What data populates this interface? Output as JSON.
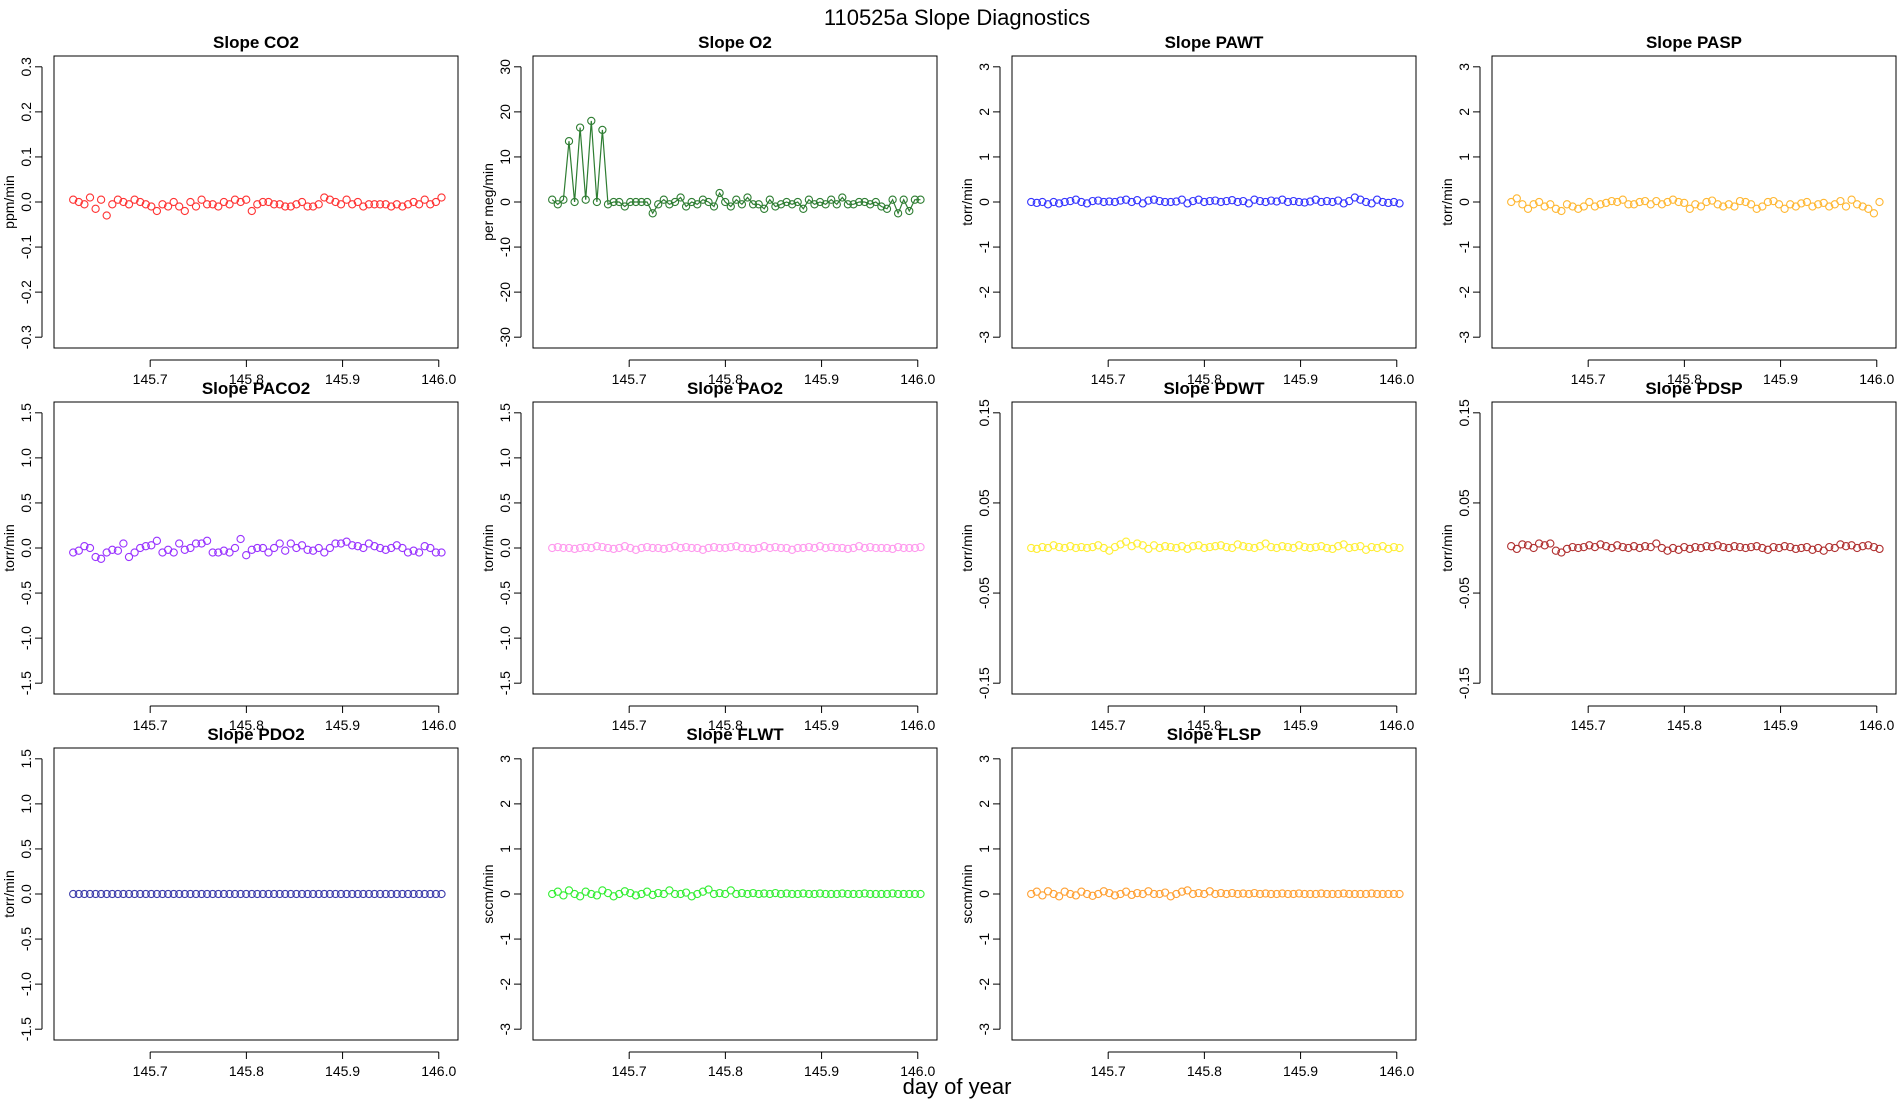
{
  "figure": {
    "title": "110525a   Slope Diagnostics",
    "xlabel": "day of year"
  },
  "chart_data": [
    {
      "type": "scatter",
      "title": "Slope CO2",
      "ylabel": "ppm/min",
      "color": "#ff3333",
      "ylim": [
        -0.3,
        0.3
      ],
      "yticks": [
        -0.3,
        -0.2,
        -0.1,
        0.0,
        0.1,
        0.2,
        0.3
      ],
      "ytick_labels": [
        "-0.3",
        "-0.2",
        "-0.1",
        "0.0",
        "0.1",
        "0.2",
        "0.3"
      ],
      "xlim": [
        145.6,
        146.02
      ],
      "xticks": [
        145.7,
        145.8,
        145.9,
        146.0
      ],
      "xtick_labels": [
        "145.7",
        "145.8",
        "145.9",
        "146.0"
      ],
      "x_start": 145.62,
      "x_step": 0.0058,
      "values": [
        0.005,
        0.0,
        -0.005,
        0.01,
        -0.015,
        0.005,
        -0.03,
        -0.005,
        0.005,
        0.0,
        -0.005,
        0.005,
        0.0,
        -0.005,
        -0.01,
        -0.02,
        -0.005,
        -0.01,
        0.0,
        -0.01,
        -0.02,
        0.0,
        -0.01,
        0.005,
        -0.005,
        -0.005,
        -0.01,
        0.0,
        -0.005,
        0.005,
        0.0,
        0.005,
        -0.02,
        -0.005,
        0.0,
        0.0,
        -0.005,
        -0.005,
        -0.01,
        -0.01,
        -0.005,
        0.0,
        -0.01,
        -0.01,
        -0.005,
        0.01,
        0.005,
        0.0,
        -0.005,
        0.005,
        -0.005,
        0.0,
        -0.01,
        -0.005,
        -0.005,
        -0.005,
        -0.005,
        -0.01,
        -0.005,
        -0.01,
        -0.005,
        0.0,
        -0.005,
        0.005,
        -0.005,
        0.0,
        0.01
      ]
    },
    {
      "type": "line",
      "title": "Slope O2",
      "ylabel": "per meg/min",
      "color": "#2e7d32",
      "ylim": [
        -30,
        30
      ],
      "yticks": [
        -30,
        -20,
        -10,
        0,
        10,
        20,
        30
      ],
      "ytick_labels": [
        "-30",
        "-20",
        "-10",
        "0",
        "10",
        "20",
        "30"
      ],
      "xlim": [
        145.6,
        146.02
      ],
      "xticks": [
        145.7,
        145.8,
        145.9,
        146.0
      ],
      "xtick_labels": [
        "145.7",
        "145.8",
        "145.9",
        "146.0"
      ],
      "x_start": 145.62,
      "x_step": 0.0058,
      "values": [
        0.5,
        -0.5,
        0.5,
        13.5,
        0.0,
        16.5,
        0.5,
        18.0,
        0.0,
        16.0,
        -0.5,
        0.0,
        0.0,
        -1.0,
        0.0,
        0.0,
        0.0,
        0.0,
        -2.5,
        -0.5,
        0.5,
        -0.5,
        0.0,
        1.0,
        -1.0,
        0.0,
        -0.5,
        0.5,
        0.0,
        -1.0,
        2.0,
        0.0,
        -1.0,
        0.5,
        -0.5,
        1.0,
        -0.5,
        -0.5,
        -1.5,
        0.5,
        -1.0,
        -0.5,
        0.0,
        -0.5,
        0.0,
        -1.5,
        0.5,
        -0.5,
        0.0,
        -0.5,
        0.5,
        -0.5,
        1.0,
        -0.5,
        -0.5,
        0.0,
        0.0,
        -0.5,
        0.0,
        -1.0,
        -1.5,
        0.5,
        -2.5,
        0.5,
        -2.0,
        0.5,
        0.5
      ]
    },
    {
      "type": "scatter",
      "title": "Slope PAWT",
      "ylabel": "torr/min",
      "color": "#3333ff",
      "ylim": [
        -3,
        3
      ],
      "yticks": [
        -3,
        -2,
        -1,
        0,
        1,
        2,
        3
      ],
      "ytick_labels": [
        "-3",
        "-2",
        "-1",
        "0",
        "1",
        "2",
        "3"
      ],
      "xlim": [
        145.6,
        146.02
      ],
      "xticks": [
        145.7,
        145.8,
        145.9,
        146.0
      ],
      "xtick_labels": [
        "145.7",
        "145.8",
        "145.9",
        "146.0"
      ],
      "x_start": 145.62,
      "x_step": 0.0058,
      "values": [
        0.0,
        -0.02,
        0.0,
        -0.05,
        0.0,
        -0.03,
        0.0,
        0.02,
        0.05,
        0.0,
        -0.03,
        0.02,
        0.03,
        0.0,
        0.01,
        0.0,
        0.03,
        0.05,
        0.0,
        0.04,
        -0.03,
        0.03,
        0.05,
        0.02,
        0.0,
        0.0,
        0.01,
        0.05,
        -0.03,
        0.02,
        0.05,
        0.0,
        0.02,
        0.03,
        0.0,
        0.02,
        0.04,
        0.0,
        0.02,
        -0.03,
        0.05,
        0.02,
        0.0,
        0.03,
        0.01,
        0.05,
        0.0,
        0.02,
        0.0,
        -0.01,
        0.01,
        0.05,
        0.0,
        0.02,
        0.0,
        0.03,
        -0.03,
        0.02,
        0.1,
        0.05,
        0.0,
        -0.03,
        0.05,
        0.0,
        -0.02,
        0.0,
        -0.03
      ]
    },
    {
      "type": "scatter",
      "title": "Slope PASP",
      "ylabel": "torr/min",
      "color": "#ffb732",
      "ylim": [
        -3,
        3
      ],
      "yticks": [
        -3,
        -2,
        -1,
        0,
        1,
        2,
        3
      ],
      "ytick_labels": [
        "-3",
        "-2",
        "-1",
        "0",
        "1",
        "2",
        "3"
      ],
      "xlim": [
        145.6,
        146.02
      ],
      "xticks": [
        145.7,
        145.8,
        145.9,
        146.0
      ],
      "xtick_labels": [
        "145.7",
        "145.8",
        "145.9",
        "146.0"
      ],
      "x_start": 145.62,
      "x_step": 0.0058,
      "values": [
        0.0,
        0.08,
        -0.05,
        -0.15,
        -0.05,
        0.0,
        -0.1,
        -0.05,
        -0.15,
        -0.2,
        -0.05,
        -0.1,
        -0.15,
        -0.1,
        0.0,
        -0.1,
        -0.05,
        -0.02,
        0.02,
        0.0,
        0.05,
        -0.05,
        -0.05,
        0.0,
        0.02,
        -0.05,
        0.02,
        -0.05,
        0.0,
        0.05,
        0.0,
        -0.02,
        -0.15,
        -0.05,
        -0.1,
        0.0,
        0.03,
        -0.05,
        -0.1,
        -0.05,
        -0.1,
        0.02,
        0.0,
        -0.05,
        -0.15,
        -0.1,
        0.0,
        0.02,
        -0.05,
        -0.15,
        -0.05,
        -0.1,
        -0.03,
        0.0,
        -0.1,
        -0.05,
        -0.02,
        -0.1,
        -0.05,
        0.02,
        -0.1,
        0.05,
        -0.05,
        -0.1,
        -0.15,
        -0.25,
        0.0
      ]
    },
    {
      "type": "scatter",
      "title": "Slope PACO2",
      "ylabel": "torr/min",
      "color": "#9933ff",
      "ylim": [
        -1.5,
        1.5
      ],
      "yticks": [
        -1.5,
        -1.0,
        -0.5,
        0.0,
        0.5,
        1.0,
        1.5
      ],
      "ytick_labels": [
        "-1.5",
        "-1.0",
        "-0.5",
        "0.0",
        "0.5",
        "1.0",
        "1.5"
      ],
      "xlim": [
        145.6,
        146.02
      ],
      "xticks": [
        145.7,
        145.8,
        145.9,
        146.0
      ],
      "xtick_labels": [
        "145.7",
        "145.8",
        "145.9",
        "146.0"
      ],
      "x_start": 145.62,
      "x_step": 0.0058,
      "values": [
        -0.05,
        -0.03,
        0.02,
        0.0,
        -0.1,
        -0.12,
        -0.05,
        -0.02,
        -0.03,
        0.05,
        -0.1,
        -0.05,
        0.0,
        0.02,
        0.03,
        0.08,
        -0.05,
        -0.02,
        -0.05,
        0.05,
        -0.02,
        0.0,
        0.05,
        0.05,
        0.08,
        -0.05,
        -0.05,
        -0.03,
        -0.05,
        0.0,
        0.1,
        -0.08,
        -0.02,
        0.0,
        0.0,
        -0.05,
        0.0,
        0.05,
        -0.03,
        0.05,
        0.0,
        0.03,
        -0.02,
        -0.03,
        0.0,
        -0.05,
        0.0,
        0.05,
        0.05,
        0.07,
        0.03,
        0.02,
        0.0,
        0.05,
        0.02,
        0.0,
        -0.02,
        0.0,
        0.03,
        0.0,
        -0.05,
        -0.03,
        -0.05,
        0.02,
        0.0,
        -0.05,
        -0.05
      ]
    },
    {
      "type": "scatter",
      "title": "Slope PAO2",
      "ylabel": "torr/min",
      "color": "#ff99ee",
      "ylim": [
        -1.5,
        1.5
      ],
      "yticks": [
        -1.5,
        -1.0,
        -0.5,
        0.0,
        0.5,
        1.0,
        1.5
      ],
      "ytick_labels": [
        "-1.5",
        "-1.0",
        "-0.5",
        "0.0",
        "0.5",
        "1.0",
        "1.5"
      ],
      "xlim": [
        145.6,
        146.02
      ],
      "xticks": [
        145.7,
        145.8,
        145.9,
        146.0
      ],
      "xtick_labels": [
        "145.7",
        "145.8",
        "145.9",
        "146.0"
      ],
      "x_start": 145.62,
      "x_step": 0.0058,
      "values": [
        0.0,
        0.01,
        0.0,
        0.0,
        -0.01,
        0.0,
        0.01,
        0.0,
        0.02,
        0.01,
        0.0,
        -0.01,
        0.0,
        0.02,
        0.0,
        -0.02,
        0.0,
        0.01,
        0.0,
        0.0,
        -0.01,
        0.0,
        0.02,
        0.0,
        0.01,
        0.0,
        0.0,
        -0.02,
        0.0,
        0.01,
        0.0,
        0.0,
        0.01,
        0.02,
        0.0,
        0.0,
        -0.01,
        0.0,
        0.02,
        0.0,
        0.01,
        0.0,
        0.0,
        -0.02,
        0.0,
        0.0,
        0.01,
        0.0,
        0.02,
        0.0,
        0.01,
        0.0,
        0.0,
        -0.01,
        0.0,
        0.02,
        0.0,
        0.01,
        0.0,
        0.0,
        0.0,
        -0.01,
        0.01,
        0.0,
        0.0,
        0.0,
        0.01
      ]
    },
    {
      "type": "scatter",
      "title": "Slope PDWT",
      "ylabel": "torr/min",
      "color": "#ffee33",
      "ylim": [
        -0.15,
        0.15
      ],
      "yticks": [
        -0.15,
        -0.05,
        0.05,
        0.15
      ],
      "ytick_labels": [
        "-0.15",
        "-0.05",
        "0.05",
        "0.15"
      ],
      "xlim": [
        145.6,
        146.02
      ],
      "xticks": [
        145.7,
        145.8,
        145.9,
        146.0
      ],
      "xtick_labels": [
        "145.7",
        "145.8",
        "145.9",
        "146.0"
      ],
      "x_start": 145.62,
      "x_step": 0.0058,
      "values": [
        0.0,
        -0.001,
        0.001,
        0.0,
        0.003,
        0.001,
        0.0,
        0.002,
        0.0,
        0.001,
        0.0,
        0.001,
        0.003,
        0.0,
        -0.003,
        0.001,
        0.004,
        0.007,
        0.002,
        0.005,
        0.003,
        -0.001,
        0.003,
        0.0,
        0.002,
        0.001,
        0.0,
        0.002,
        -0.001,
        0.002,
        0.003,
        0.0,
        0.001,
        0.002,
        0.003,
        0.001,
        0.0,
        0.004,
        0.002,
        0.001,
        0.0,
        0.002,
        0.005,
        0.001,
        0.0,
        0.002,
        0.001,
        0.0,
        0.003,
        0.001,
        0.0,
        0.001,
        0.002,
        0.0,
        -0.001,
        0.002,
        0.004,
        0.0,
        0.001,
        0.002,
        -0.002,
        0.001,
        0.0,
        0.002,
        -0.001,
        0.001,
        0.0
      ]
    },
    {
      "type": "scatter",
      "title": "Slope PDSP",
      "ylabel": "torr/min",
      "color": "#b03030",
      "ylim": [
        -0.15,
        0.15
      ],
      "yticks": [
        -0.15,
        -0.05,
        0.05,
        0.15
      ],
      "ytick_labels": [
        "-0.15",
        "-0.05",
        "0.05",
        "0.15"
      ],
      "xlim": [
        145.6,
        146.02
      ],
      "xticks": [
        145.7,
        145.8,
        145.9,
        146.0
      ],
      "xtick_labels": [
        "145.7",
        "145.8",
        "145.9",
        "146.0"
      ],
      "x_start": 145.62,
      "x_step": 0.0058,
      "values": [
        0.002,
        -0.001,
        0.004,
        0.003,
        0.0,
        0.005,
        0.003,
        0.005,
        -0.003,
        -0.005,
        -0.001,
        0.001,
        0.0,
        0.001,
        0.003,
        0.001,
        0.004,
        0.002,
        0.0,
        0.003,
        0.001,
        0.0,
        0.002,
        0.0,
        0.002,
        0.001,
        0.005,
        0.0,
        -0.003,
        0.0,
        -0.002,
        0.001,
        -0.001,
        0.001,
        0.0,
        0.002,
        0.001,
        0.003,
        0.001,
        0.0,
        0.002,
        0.001,
        0.0,
        0.001,
        0.002,
        0.0,
        -0.002,
        0.001,
        0.0,
        0.002,
        0.001,
        -0.001,
        0.0,
        0.001,
        -0.002,
        0.0,
        -0.003,
        0.001,
        0.0,
        0.004,
        0.002,
        0.003,
        0.0,
        0.002,
        0.003,
        0.001,
        -0.001
      ]
    },
    {
      "type": "scatter",
      "title": "Slope PDO2",
      "ylabel": "torr/min",
      "color": "#3a3aaa",
      "ylim": [
        -1.5,
        1.5
      ],
      "yticks": [
        -1.5,
        -1.0,
        -0.5,
        0.0,
        0.5,
        1.0,
        1.5
      ],
      "ytick_labels": [
        "-1.5",
        "-1.0",
        "-0.5",
        "0.0",
        "0.5",
        "1.0",
        "1.5"
      ],
      "xlim": [
        145.6,
        146.02
      ],
      "xticks": [
        145.7,
        145.8,
        145.9,
        146.0
      ],
      "xtick_labels": [
        "145.7",
        "145.8",
        "145.9",
        "146.0"
      ],
      "x_start": 145.62,
      "x_step": 0.0058,
      "values": [
        0,
        0,
        0,
        0,
        0,
        0,
        0,
        0,
        0,
        0,
        0,
        0,
        0,
        0,
        0,
        0,
        0,
        0,
        0,
        0,
        0,
        0,
        0,
        0,
        0,
        0,
        0,
        0,
        0,
        0,
        0,
        0,
        0,
        0,
        0,
        0,
        0,
        0,
        0,
        0,
        0,
        0,
        0,
        0,
        0,
        0,
        0,
        0,
        0,
        0,
        0,
        0,
        0,
        0,
        0,
        0,
        0,
        0,
        0,
        0,
        0,
        0,
        0,
        0,
        0,
        0,
        0
      ]
    },
    {
      "type": "scatter",
      "title": "Slope FLWT",
      "ylabel": "sccm/min",
      "color": "#33ee33",
      "ylim": [
        -3,
        3
      ],
      "yticks": [
        -3,
        -2,
        -1,
        0,
        1,
        2,
        3
      ],
      "ytick_labels": [
        "-3",
        "-2",
        "-1",
        "0",
        "1",
        "2",
        "3"
      ],
      "xlim": [
        145.6,
        146.02
      ],
      "xticks": [
        145.7,
        145.8,
        145.9,
        146.0
      ],
      "xtick_labels": [
        "145.7",
        "145.8",
        "145.9",
        "146.0"
      ],
      "x_start": 145.62,
      "x_step": 0.0058,
      "values": [
        0.0,
        0.05,
        -0.03,
        0.08,
        0.0,
        -0.05,
        0.05,
        0.0,
        -0.03,
        0.08,
        0.02,
        -0.05,
        0.0,
        0.06,
        0.02,
        -0.03,
        0.0,
        0.05,
        -0.02,
        0.02,
        0.0,
        0.08,
        0.0,
        0.0,
        0.03,
        -0.05,
        0.0,
        0.05,
        0.1,
        0.0,
        0.02,
        0.0,
        0.08,
        0.0,
        0.02,
        0.0,
        0.02,
        0.0,
        0.01,
        0.0,
        0.02,
        0.0,
        0.01,
        0.0,
        0.0,
        0.01,
        0.0,
        0.0,
        0.01,
        0.0,
        0.0,
        0.0,
        0.01,
        0.0,
        0.0,
        0.0,
        0.01,
        0.0,
        0.0,
        0.0,
        0.0,
        0.01,
        0.0,
        0.0,
        0.0,
        0.0,
        0.0
      ]
    },
    {
      "type": "scatter",
      "title": "Slope FLSP",
      "ylabel": "sccm/min",
      "color": "#ffa033",
      "ylim": [
        -3,
        3
      ],
      "yticks": [
        -3,
        -2,
        -1,
        0,
        1,
        2,
        3
      ],
      "ytick_labels": [
        "-3",
        "-2",
        "-1",
        "0",
        "1",
        "2",
        "3"
      ],
      "xlim": [
        145.6,
        146.02
      ],
      "xticks": [
        145.7,
        145.8,
        145.9,
        146.0
      ],
      "xtick_labels": [
        "145.7",
        "145.8",
        "145.9",
        "146.0"
      ],
      "x_start": 145.62,
      "x_step": 0.0058,
      "values": [
        0.0,
        0.05,
        -0.03,
        0.06,
        0.0,
        -0.05,
        0.05,
        0.0,
        -0.03,
        0.05,
        0.0,
        -0.04,
        0.0,
        0.06,
        0.02,
        -0.03,
        0.0,
        0.05,
        -0.02,
        0.02,
        0.0,
        0.06,
        0.0,
        0.0,
        0.03,
        -0.05,
        0.0,
        0.05,
        0.08,
        0.0,
        0.02,
        0.0,
        0.06,
        0.0,
        0.02,
        0.0,
        0.02,
        0.0,
        0.01,
        0.0,
        0.02,
        0.0,
        0.01,
        0.0,
        0.0,
        0.01,
        0.0,
        0.0,
        0.01,
        0.0,
        0.0,
        0.0,
        0.01,
        0.0,
        0.0,
        0.0,
        0.01,
        0.0,
        0.0,
        0.0,
        0.0,
        0.01,
        0.0,
        0.0,
        0.0,
        0.0,
        0.0
      ]
    }
  ]
}
